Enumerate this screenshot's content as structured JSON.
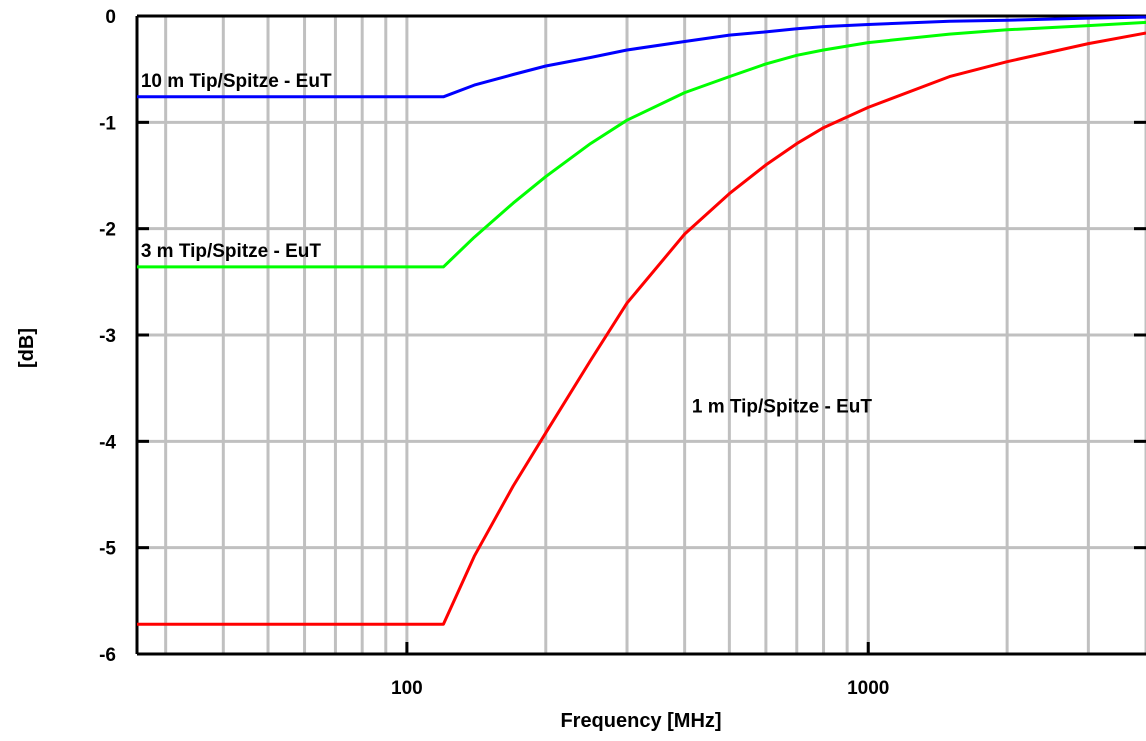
{
  "chart_data": {
    "type": "line",
    "title": "",
    "xlabel": "Frequency [MHz]",
    "ylabel": "[dB]",
    "x_scale": "log",
    "xlim": [
      26,
      4000
    ],
    "ylim": [
      -6,
      0
    ],
    "grid": true,
    "x_ticks": [
      {
        "value": 100,
        "label": "100"
      },
      {
        "value": 1000,
        "label": "1000"
      }
    ],
    "y_ticks": [
      {
        "value": 0,
        "label": "0"
      },
      {
        "value": -1,
        "label": "-1"
      },
      {
        "value": -2,
        "label": "-2"
      },
      {
        "value": -3,
        "label": "-3"
      },
      {
        "value": -4,
        "label": "-4"
      },
      {
        "value": -5,
        "label": "-5"
      },
      {
        "value": -6,
        "label": "-6"
      }
    ],
    "series": [
      {
        "name": "10 m Tip/Spitze - EuT",
        "color": "#0000ff",
        "x": [
          26,
          120,
          140,
          170,
          200,
          250,
          300,
          400,
          500,
          600,
          700,
          800,
          1000,
          1500,
          2000,
          3000,
          4000
        ],
        "y": [
          -0.76,
          -0.76,
          -0.65,
          -0.55,
          -0.47,
          -0.39,
          -0.32,
          -0.24,
          -0.18,
          -0.15,
          -0.12,
          -0.1,
          -0.08,
          -0.05,
          -0.04,
          -0.02,
          -0.01
        ]
      },
      {
        "name": "3 m Tip/Spitze - EuT",
        "color": "#00ff00",
        "x": [
          26,
          120,
          140,
          170,
          200,
          250,
          300,
          400,
          500,
          600,
          700,
          800,
          1000,
          1500,
          2000,
          3000,
          4000
        ],
        "y": [
          -2.36,
          -2.36,
          -2.08,
          -1.76,
          -1.51,
          -1.2,
          -0.98,
          -0.72,
          -0.57,
          -0.45,
          -0.37,
          -0.32,
          -0.25,
          -0.17,
          -0.13,
          -0.09,
          -0.06
        ]
      },
      {
        "name": "1 m Tip/Spitze - EuT",
        "color": "#ff0000",
        "x": [
          26,
          120,
          140,
          170,
          200,
          250,
          300,
          400,
          500,
          600,
          700,
          800,
          1000,
          1500,
          2000,
          3000,
          4000
        ],
        "y": [
          -5.72,
          -5.72,
          -5.08,
          -4.42,
          -3.92,
          -3.24,
          -2.7,
          -2.05,
          -1.67,
          -1.4,
          -1.2,
          -1.05,
          -0.86,
          -0.57,
          -0.43,
          -0.26,
          -0.16
        ]
      }
    ],
    "annotations": [
      {
        "text": "10 m Tip/Spitze - EuT",
        "series": 0
      },
      {
        "text": "3 m Tip/Spitze - EuT",
        "series": 1
      },
      {
        "text": "1 m Tip/Spitze - EuT",
        "series": 2
      }
    ]
  }
}
